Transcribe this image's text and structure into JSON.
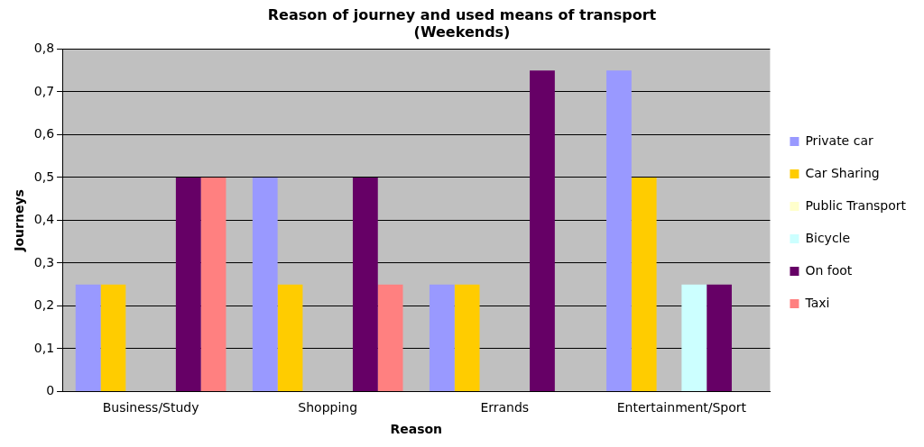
{
  "chart_data": {
    "type": "bar",
    "title": "Reason of journey and used means of transport\n(Weekends)",
    "xlabel": "Reason",
    "ylabel": "Journeys",
    "categories": [
      "Business/Study",
      "Shopping",
      "Errands",
      "Entertainment/Sport"
    ],
    "series": [
      {
        "name": "Private car",
        "color": "#9999ff",
        "values": [
          0.25,
          0.5,
          0.25,
          0.75
        ]
      },
      {
        "name": "Car Sharing",
        "color": "#ffcc00",
        "values": [
          0.25,
          0.25,
          0.25,
          0.5
        ]
      },
      {
        "name": "Public Transport",
        "color": "#ffffcc",
        "values": [
          0,
          0,
          0,
          0
        ]
      },
      {
        "name": "Bicycle",
        "color": "#ccffff",
        "values": [
          0,
          0,
          0,
          0.25
        ]
      },
      {
        "name": "On foot",
        "color": "#660066",
        "values": [
          0.5,
          0.5,
          0.75,
          0.25
        ]
      },
      {
        "name": "Taxi",
        "color": "#ff8080",
        "values": [
          0.5,
          0.25,
          0,
          0
        ]
      }
    ],
    "ylim": [
      0,
      0.8
    ],
    "yticks": [
      0,
      {
        "value": 0.1,
        "label": "0,1"
      },
      {
        "value": 0.2,
        "label": "0,2"
      },
      {
        "value": 0.3,
        "label": "0,3"
      },
      {
        "value": 0.4,
        "label": "0,4"
      },
      {
        "value": 0.5,
        "label": "0,5"
      },
      {
        "value": 0.6,
        "label": "0,6"
      },
      {
        "value": 0.7,
        "label": "0,7"
      },
      {
        "value": 0.8,
        "label": "0,8"
      }
    ],
    "grid": "y",
    "legend": "right"
  }
}
